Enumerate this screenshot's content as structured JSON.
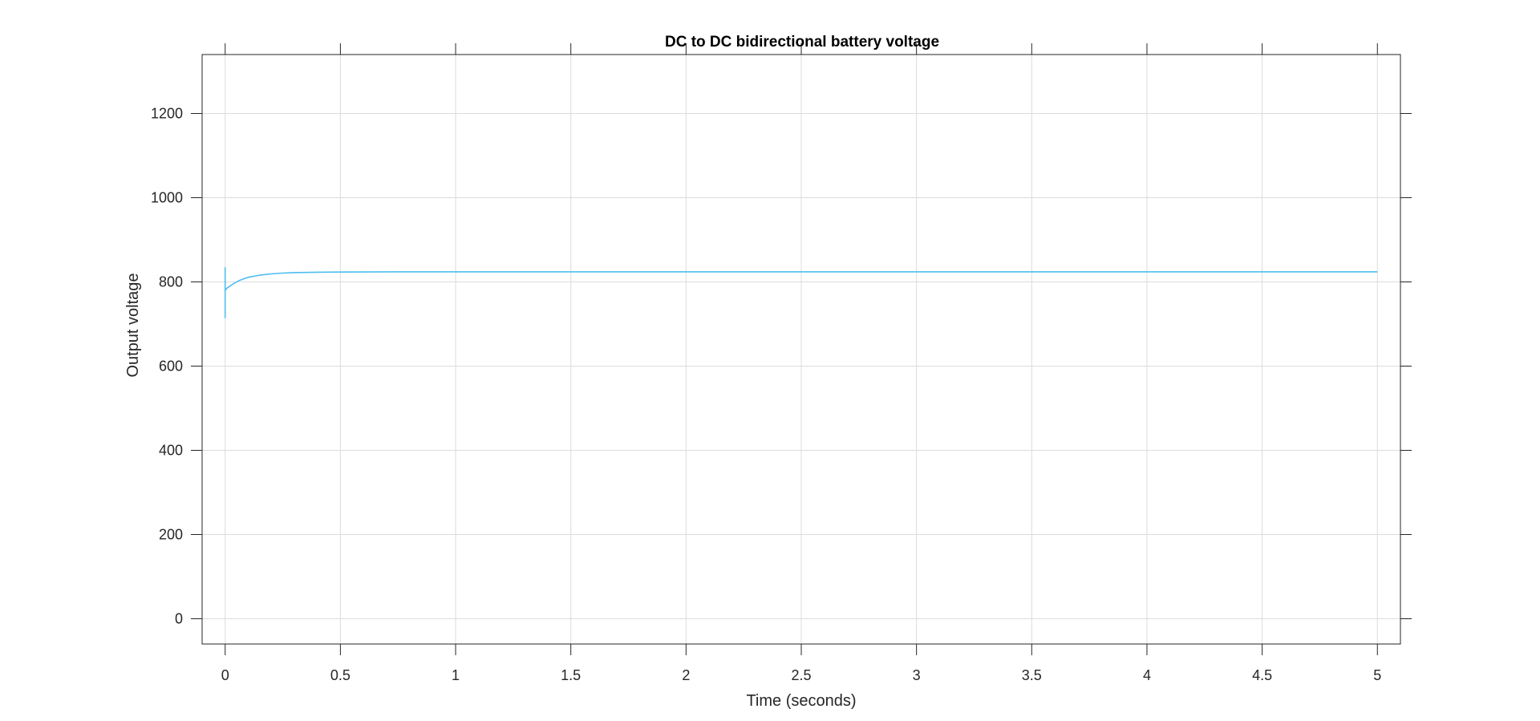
{
  "chart_data": {
    "type": "line",
    "title": "DC to DC bidirectional battery voltage",
    "xlabel": "Time (seconds)",
    "ylabel": "Output voltage",
    "xlim": [
      -0.1,
      5.1
    ],
    "ylim": [
      -60,
      1340
    ],
    "x_ticks": [
      0,
      0.5,
      1,
      1.5,
      2,
      2.5,
      3,
      3.5,
      4,
      4.5,
      5
    ],
    "x_tick_labels": [
      "0",
      "0.5",
      "1",
      "1.5",
      "2",
      "2.5",
      "3",
      "3.5",
      "4",
      "4.5",
      "5"
    ],
    "y_ticks": [
      0,
      200,
      400,
      600,
      800,
      1000,
      1200
    ],
    "y_tick_labels": [
      "0",
      "200",
      "400",
      "600",
      "800",
      "1000",
      "1200"
    ],
    "grid": true,
    "series": [
      {
        "color": "#4DBEEE",
        "x": [
          0,
          0,
          0,
          0,
          0.01,
          0.02,
          0.04,
          0.06,
          0.08,
          0.1,
          0.15,
          0.2,
          0.25,
          0.3,
          0.4,
          0.5,
          0.75,
          1,
          2,
          3,
          4,
          5
        ],
        "y": [
          835,
          715,
          800,
          780,
          786,
          790,
          797,
          803,
          807,
          811,
          816,
          819,
          821,
          822,
          823,
          823.5,
          824,
          824,
          824,
          824,
          824,
          824
        ]
      }
    ]
  }
}
